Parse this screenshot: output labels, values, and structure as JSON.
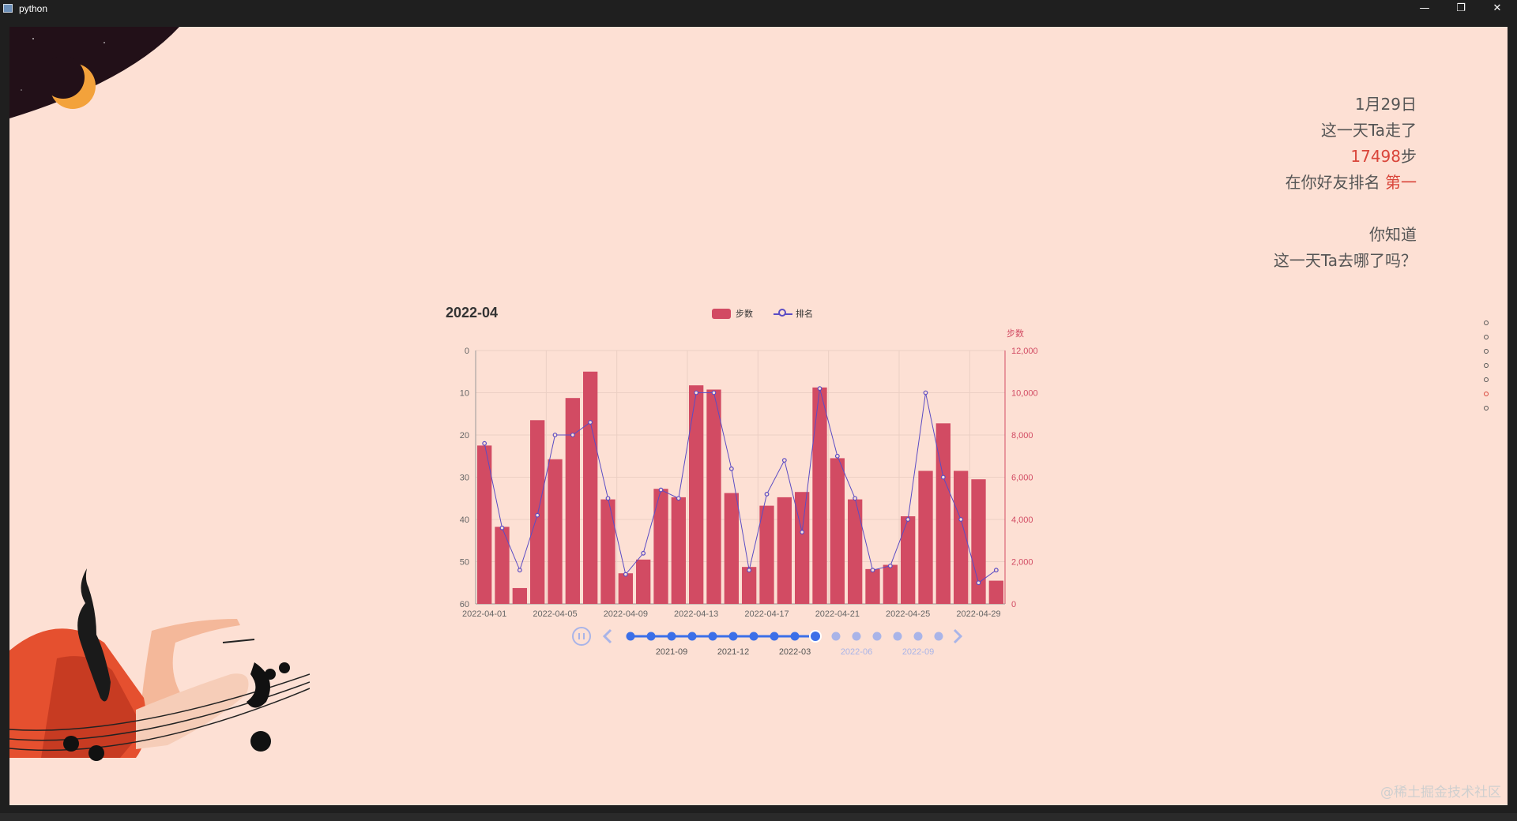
{
  "window": {
    "title": "python",
    "minimize": "—",
    "restore": "❐",
    "close": "✕"
  },
  "info": {
    "date": "1月29日",
    "line1": "这一天Ta走了",
    "steps_value": "17498",
    "steps_unit": "步",
    "rank_prefix": "在你好友排名 ",
    "rank_value": "第一",
    "question1": "你知道",
    "question2": "这一天Ta去哪了吗？"
  },
  "chart": {
    "title": "2022-04"
  },
  "legend": {
    "bar_label": "步数",
    "line_label": "排名"
  },
  "chart_data": {
    "type": "bar",
    "title": "2022-04",
    "x": [
      "2022-04-01",
      "2022-04-02",
      "2022-04-03",
      "2022-04-04",
      "2022-04-05",
      "2022-04-06",
      "2022-04-07",
      "2022-04-08",
      "2022-04-09",
      "2022-04-10",
      "2022-04-11",
      "2022-04-12",
      "2022-04-13",
      "2022-04-14",
      "2022-04-15",
      "2022-04-16",
      "2022-04-17",
      "2022-04-18",
      "2022-04-19",
      "2022-04-20",
      "2022-04-21",
      "2022-04-22",
      "2022-04-23",
      "2022-04-24",
      "2022-04-25",
      "2022-04-26",
      "2022-04-27",
      "2022-04-28",
      "2022-04-29",
      "2022-04-30"
    ],
    "x_ticks": [
      "2022-04-01",
      "2022-04-05",
      "2022-04-09",
      "2022-04-13",
      "2022-04-17",
      "2022-04-21",
      "2022-04-25",
      "2022-04-29"
    ],
    "series": [
      {
        "name": "步数",
        "type": "bar",
        "axis": "right",
        "values": [
          7500,
          3650,
          750,
          8700,
          6850,
          9750,
          11000,
          4950,
          1450,
          2100,
          5450,
          5050,
          10350,
          10150,
          5250,
          1750,
          4650,
          5050,
          5300,
          10250,
          6900,
          4950,
          1650,
          1850,
          4150,
          6300,
          8550,
          6300,
          5900,
          1100
        ]
      },
      {
        "name": "排名",
        "type": "line",
        "axis": "left",
        "inverse": true,
        "values": [
          22,
          42,
          52,
          39,
          20,
          20,
          17,
          35,
          53,
          48,
          33,
          35,
          10,
          10,
          28,
          52,
          34,
          26,
          43,
          9,
          25,
          35,
          52,
          51,
          40,
          10,
          30,
          40,
          55,
          52
        ]
      }
    ],
    "y_left": {
      "min": 0,
      "max": 60,
      "ticks": [
        0,
        10,
        20,
        30,
        40,
        50,
        60
      ],
      "inverse": true
    },
    "y_right": {
      "name": "步数",
      "min": 0,
      "max": 12000,
      "ticks": [
        "0",
        "2,000",
        "4,000",
        "6,000",
        "8,000",
        "10,000",
        "12,000"
      ]
    },
    "grid": true,
    "legend_position": "top-center"
  },
  "timeline": {
    "periods": [
      "2021-07",
      "2021-08",
      "2021-09",
      "2021-10",
      "2021-11",
      "2021-12",
      "2022-01",
      "2022-02",
      "2022-03",
      "2022-04",
      "2022-05",
      "2022-06",
      "2022-07",
      "2022-08",
      "2022-09",
      "2022-10"
    ],
    "labels": [
      "2021-09",
      "2021-12",
      "2022-03",
      "2022-06",
      "2022-09"
    ],
    "current": "2022-04",
    "active_color": "#3b6fe8",
    "inactive_color": "#a9b4e8"
  },
  "pager": {
    "count": 7,
    "active": 5
  },
  "watermark": "@稀土掘金技术社区",
  "colors": {
    "bar": "#d24b63",
    "line": "#5b4cc4",
    "right_axis": "#d24b63",
    "background": "#fde0d4"
  }
}
